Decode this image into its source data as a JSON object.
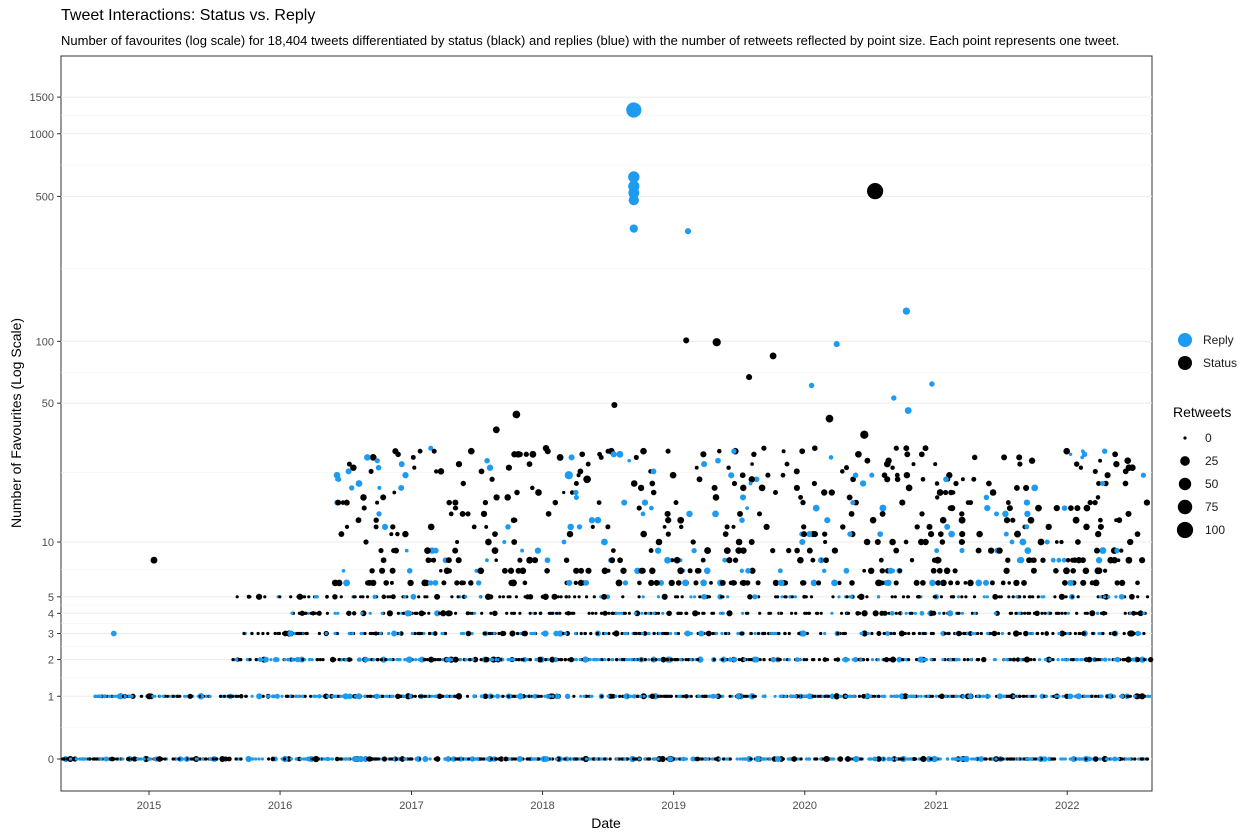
{
  "chart_data": {
    "type": "scatter",
    "title": "Tweet Interactions: Status vs. Reply",
    "subtitle": "Number of favourites (log scale) for 18,404 tweets differentiated by status (black) and replies (blue) with the number of retweets reflected by point size. Each point represents one tweet.",
    "xlabel": "Date",
    "ylabel": "Number of Favourites (Log Scale)",
    "x_scale": "date",
    "y_scale": "log1p",
    "xlim": [
      "2014-05-01",
      "2022-08-25"
    ],
    "ylim": [
      0,
      2000
    ],
    "x_ticks": [
      "2015",
      "2016",
      "2017",
      "2018",
      "2019",
      "2020",
      "2021",
      "2022"
    ],
    "y_ticks": [
      0,
      1,
      2,
      3,
      4,
      5,
      10,
      50,
      100,
      500,
      1000,
      1500
    ],
    "grid": true,
    "colors": {
      "Reply": "#1d9bf0",
      "Status": "#000000"
    },
    "legend": {
      "position": "right",
      "color_title": "",
      "color_entries": [
        "Reply",
        "Status"
      ],
      "size_title": "Retweets",
      "size_entries": [
        0,
        25,
        50,
        75,
        100
      ]
    },
    "highlights": [
      {
        "date": "2018-09-12",
        "favourites": 1300,
        "retweets": 85,
        "type": "Reply"
      },
      {
        "date": "2018-09-12",
        "favourites": 620,
        "retweets": 40,
        "type": "Reply"
      },
      {
        "date": "2018-09-12",
        "favourites": 560,
        "retweets": 38,
        "type": "Reply"
      },
      {
        "date": "2018-09-12",
        "favourites": 520,
        "retweets": 35,
        "type": "Reply"
      },
      {
        "date": "2018-09-12",
        "favourites": 480,
        "retweets": 30,
        "type": "Reply"
      },
      {
        "date": "2018-09-12",
        "favourites": 350,
        "retweets": 15,
        "type": "Reply"
      },
      {
        "date": "2019-02-10",
        "favourites": 340,
        "retweets": 5,
        "type": "Reply"
      },
      {
        "date": "2020-07-15",
        "favourites": 530,
        "retweets": 100,
        "type": "Status"
      },
      {
        "date": "2020-10-10",
        "favourites": 140,
        "retweets": 10,
        "type": "Reply"
      },
      {
        "date": "2019-02-05",
        "favourites": 101,
        "retweets": 5,
        "type": "Status"
      },
      {
        "date": "2019-05-01",
        "favourites": 99,
        "retweets": 15,
        "type": "Status"
      },
      {
        "date": "2020-03-30",
        "favourites": 97,
        "retweets": 5,
        "type": "Reply"
      },
      {
        "date": "2019-10-05",
        "favourites": 85,
        "retweets": 8,
        "type": "Status"
      },
      {
        "date": "2019-07-30",
        "favourites": 67,
        "retweets": 5,
        "type": "Status"
      },
      {
        "date": "2020-12-20",
        "favourites": 62,
        "retweets": 3,
        "type": "Reply"
      },
      {
        "date": "2020-01-20",
        "favourites": 61,
        "retweets": 3,
        "type": "Reply"
      },
      {
        "date": "2020-09-05",
        "favourites": 53,
        "retweets": 3,
        "type": "Reply"
      },
      {
        "date": "2018-07-20",
        "favourites": 49,
        "retweets": 5,
        "type": "Status"
      },
      {
        "date": "2017-10-20",
        "favourites": 44,
        "retweets": 12,
        "type": "Status"
      },
      {
        "date": "2017-08-25",
        "favourites": 37,
        "retweets": 8,
        "type": "Status"
      },
      {
        "date": "2020-06-15",
        "favourites": 35,
        "retweets": 15,
        "type": "Status"
      },
      {
        "date": "2020-03-10",
        "favourites": 42,
        "retweets": 12,
        "type": "Status"
      },
      {
        "date": "2020-10-15",
        "favourites": 46,
        "retweets": 8,
        "type": "Reply"
      },
      {
        "date": "2018-03-15",
        "favourites": 22,
        "retweets": 15,
        "type": "Reply"
      },
      {
        "date": "2018-05-05",
        "favourites": 21,
        "retweets": 12,
        "type": "Status"
      },
      {
        "date": "2015-01-15",
        "favourites": 8,
        "retweets": 8,
        "type": "Status"
      },
      {
        "date": "2014-09-25",
        "favourites": 3,
        "retweets": 4,
        "type": "Reply"
      }
    ],
    "points_note": "Dense band of small points at favourites 0, 1, 2, 3, 4, 5 and scattered 6–30 from 2014 to 2022."
  }
}
